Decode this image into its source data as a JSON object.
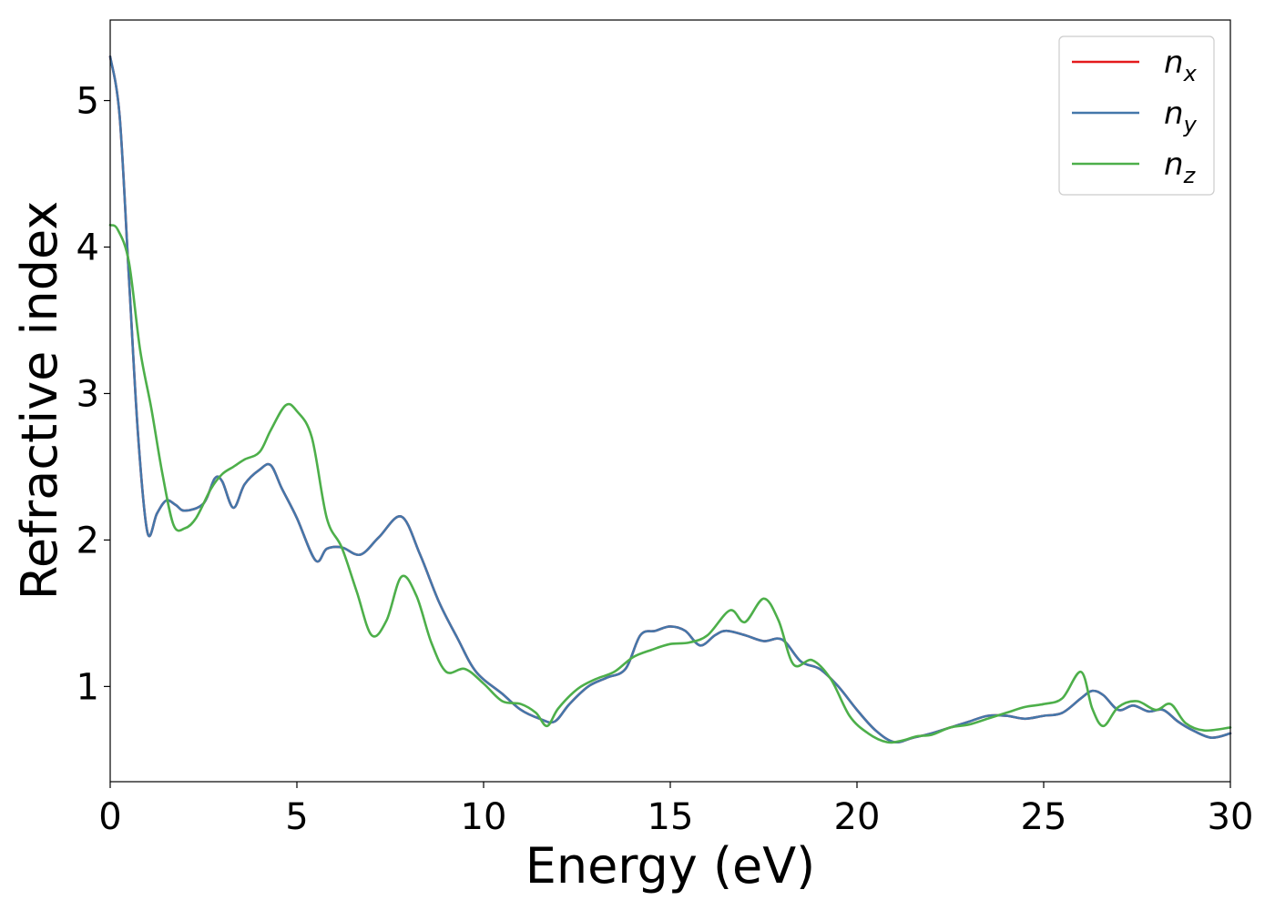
{
  "chart_data": {
    "type": "line",
    "title": "",
    "xlabel": "Energy (eV)",
    "ylabel": "Refractive index",
    "xlim": [
      0,
      30
    ],
    "ylim": [
      0.35,
      5.55
    ],
    "xticks": [
      "0",
      "5",
      "10",
      "15",
      "20",
      "25",
      "30"
    ],
    "yticks": [
      "1",
      "2",
      "3",
      "4",
      "5"
    ],
    "grid": false,
    "legend_position": "top-right",
    "series": [
      {
        "name": "n",
        "subscript": "x",
        "color": "#e41a1c",
        "x": [
          0,
          0.25,
          0.5,
          0.75,
          1.0,
          1.25,
          1.5,
          1.75,
          2.0,
          2.5,
          2.8,
          3.0,
          3.3,
          3.6,
          4.0,
          4.3,
          4.6,
          5.0,
          5.5,
          5.8,
          6.2,
          6.7,
          7.2,
          7.8,
          8.3,
          8.8,
          9.3,
          9.8,
          10.5,
          11.0,
          11.5,
          11.9,
          12.3,
          12.8,
          13.3,
          13.8,
          14.2,
          14.6,
          15.0,
          15.4,
          15.8,
          16.2,
          16.5,
          17.0,
          17.5,
          18.0,
          18.5,
          19.0,
          19.5,
          20.0,
          20.5,
          21.0,
          21.5,
          22.0,
          22.5,
          23.0,
          23.5,
          24.0,
          24.5,
          25.0,
          25.5,
          26.0,
          26.3,
          26.6,
          27.0,
          27.4,
          27.8,
          28.2,
          28.6,
          29.0,
          29.5,
          30.0
        ],
        "values": [
          5.3,
          4.9,
          3.8,
          2.7,
          2.05,
          2.18,
          2.27,
          2.24,
          2.2,
          2.25,
          2.42,
          2.4,
          2.22,
          2.38,
          2.48,
          2.51,
          2.35,
          2.15,
          1.86,
          1.94,
          1.95,
          1.9,
          2.02,
          2.16,
          1.9,
          1.58,
          1.33,
          1.1,
          0.95,
          0.84,
          0.78,
          0.76,
          0.88,
          1.0,
          1.06,
          1.12,
          1.35,
          1.38,
          1.41,
          1.38,
          1.28,
          1.35,
          1.38,
          1.35,
          1.31,
          1.32,
          1.17,
          1.12,
          1.0,
          0.84,
          0.7,
          0.62,
          0.65,
          0.68,
          0.72,
          0.76,
          0.8,
          0.8,
          0.78,
          0.8,
          0.82,
          0.92,
          0.97,
          0.94,
          0.84,
          0.87,
          0.83,
          0.84,
          0.76,
          0.7,
          0.65,
          0.68
        ]
      },
      {
        "name": "n",
        "subscript": "y",
        "color": "#4477aa",
        "x": [
          0,
          0.25,
          0.5,
          0.75,
          1.0,
          1.25,
          1.5,
          1.75,
          2.0,
          2.5,
          2.8,
          3.0,
          3.3,
          3.6,
          4.0,
          4.3,
          4.6,
          5.0,
          5.5,
          5.8,
          6.2,
          6.7,
          7.2,
          7.8,
          8.3,
          8.8,
          9.3,
          9.8,
          10.5,
          11.0,
          11.5,
          11.9,
          12.3,
          12.8,
          13.3,
          13.8,
          14.2,
          14.6,
          15.0,
          15.4,
          15.8,
          16.2,
          16.5,
          17.0,
          17.5,
          18.0,
          18.5,
          19.0,
          19.5,
          20.0,
          20.5,
          21.0,
          21.5,
          22.0,
          22.5,
          23.0,
          23.5,
          24.0,
          24.5,
          25.0,
          25.5,
          26.0,
          26.3,
          26.6,
          27.0,
          27.4,
          27.8,
          28.2,
          28.6,
          29.0,
          29.5,
          30.0
        ],
        "values": [
          5.3,
          4.9,
          3.8,
          2.7,
          2.05,
          2.18,
          2.27,
          2.24,
          2.2,
          2.25,
          2.42,
          2.4,
          2.22,
          2.38,
          2.48,
          2.51,
          2.35,
          2.15,
          1.86,
          1.94,
          1.95,
          1.9,
          2.02,
          2.16,
          1.9,
          1.58,
          1.33,
          1.1,
          0.95,
          0.84,
          0.78,
          0.76,
          0.88,
          1.0,
          1.06,
          1.12,
          1.35,
          1.38,
          1.41,
          1.38,
          1.28,
          1.35,
          1.38,
          1.35,
          1.31,
          1.32,
          1.17,
          1.12,
          1.0,
          0.84,
          0.7,
          0.62,
          0.65,
          0.68,
          0.72,
          0.76,
          0.8,
          0.8,
          0.78,
          0.8,
          0.82,
          0.92,
          0.97,
          0.94,
          0.84,
          0.87,
          0.83,
          0.84,
          0.76,
          0.7,
          0.65,
          0.68
        ]
      },
      {
        "name": "n",
        "subscript": "z",
        "color": "#4daf4a",
        "x": [
          0,
          0.2,
          0.5,
          0.8,
          1.1,
          1.4,
          1.7,
          2.0,
          2.3,
          2.7,
          3.0,
          3.3,
          3.6,
          4.0,
          4.3,
          4.7,
          5.0,
          5.4,
          5.8,
          6.2,
          6.6,
          7.0,
          7.4,
          7.8,
          8.2,
          8.6,
          9.0,
          9.5,
          10.0,
          10.5,
          11.0,
          11.4,
          11.7,
          12.0,
          12.5,
          13.0,
          13.5,
          14.0,
          14.5,
          15.0,
          15.5,
          16.0,
          16.6,
          17.0,
          17.5,
          17.9,
          18.3,
          18.8,
          19.3,
          19.8,
          20.3,
          20.8,
          21.2,
          21.6,
          22.0,
          22.5,
          23.0,
          23.5,
          24.0,
          24.5,
          25.0,
          25.5,
          26.0,
          26.3,
          26.6,
          27.0,
          27.5,
          28.0,
          28.4,
          28.8,
          29.3,
          30.0
        ],
        "values": [
          4.15,
          4.12,
          3.9,
          3.3,
          2.9,
          2.45,
          2.1,
          2.08,
          2.15,
          2.35,
          2.45,
          2.5,
          2.55,
          2.6,
          2.75,
          2.92,
          2.88,
          2.7,
          2.15,
          1.95,
          1.65,
          1.35,
          1.45,
          1.75,
          1.62,
          1.3,
          1.1,
          1.12,
          1.02,
          0.9,
          0.88,
          0.82,
          0.73,
          0.85,
          0.98,
          1.05,
          1.1,
          1.2,
          1.25,
          1.29,
          1.3,
          1.35,
          1.52,
          1.44,
          1.6,
          1.45,
          1.15,
          1.18,
          1.05,
          0.8,
          0.68,
          0.62,
          0.63,
          0.66,
          0.67,
          0.72,
          0.74,
          0.78,
          0.82,
          0.86,
          0.88,
          0.92,
          1.1,
          0.85,
          0.73,
          0.86,
          0.9,
          0.84,
          0.88,
          0.75,
          0.7,
          0.72
        ]
      }
    ]
  }
}
